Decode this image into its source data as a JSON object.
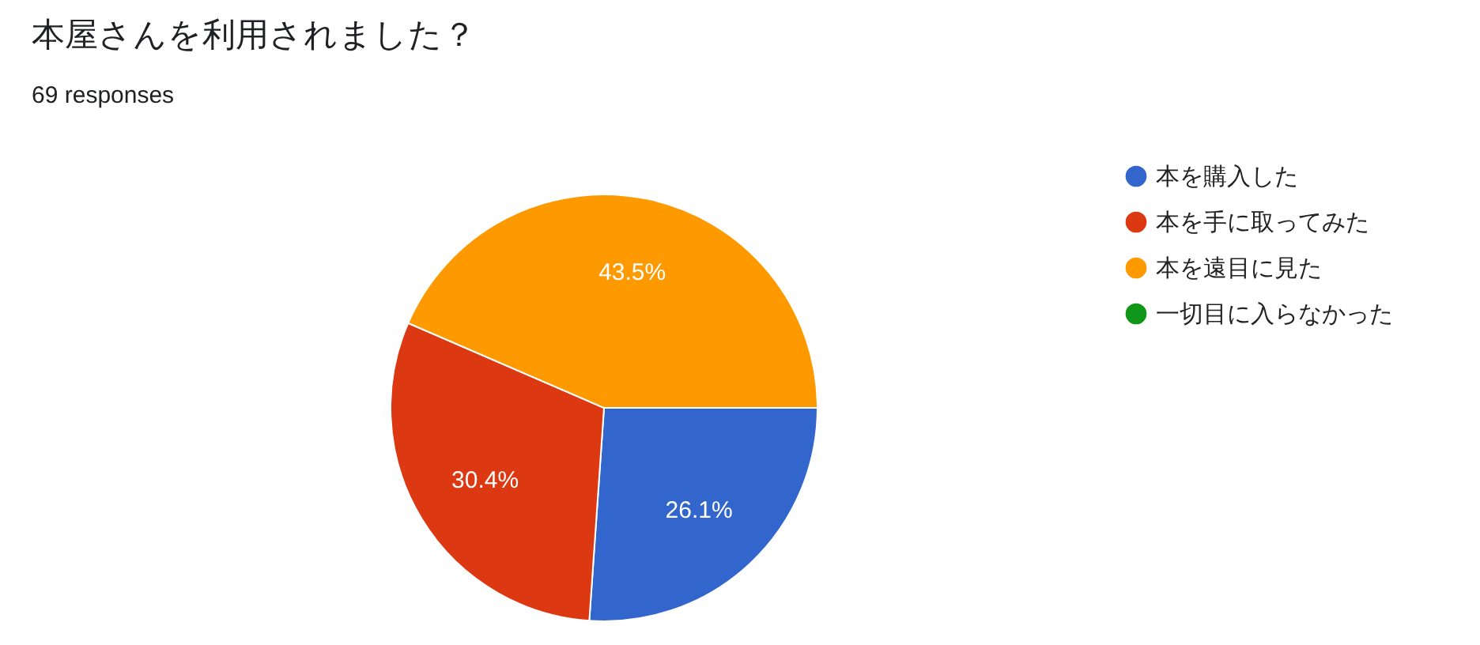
{
  "chart_data": {
    "type": "pie",
    "title": "本屋さんを利用されました？",
    "subtitle": "69 responses",
    "categories": [
      "本を購入した",
      "本を手に取ってみた",
      "本を遠目に見た",
      "一切目に入らなかった"
    ],
    "values": [
      26.1,
      30.4,
      43.5,
      0
    ],
    "colors": [
      "#3366cc",
      "#dc3912",
      "#ff9900",
      "#109618"
    ],
    "value_labels": [
      "26.1%",
      "30.4%",
      "43.5%",
      null
    ],
    "legend": "right"
  }
}
